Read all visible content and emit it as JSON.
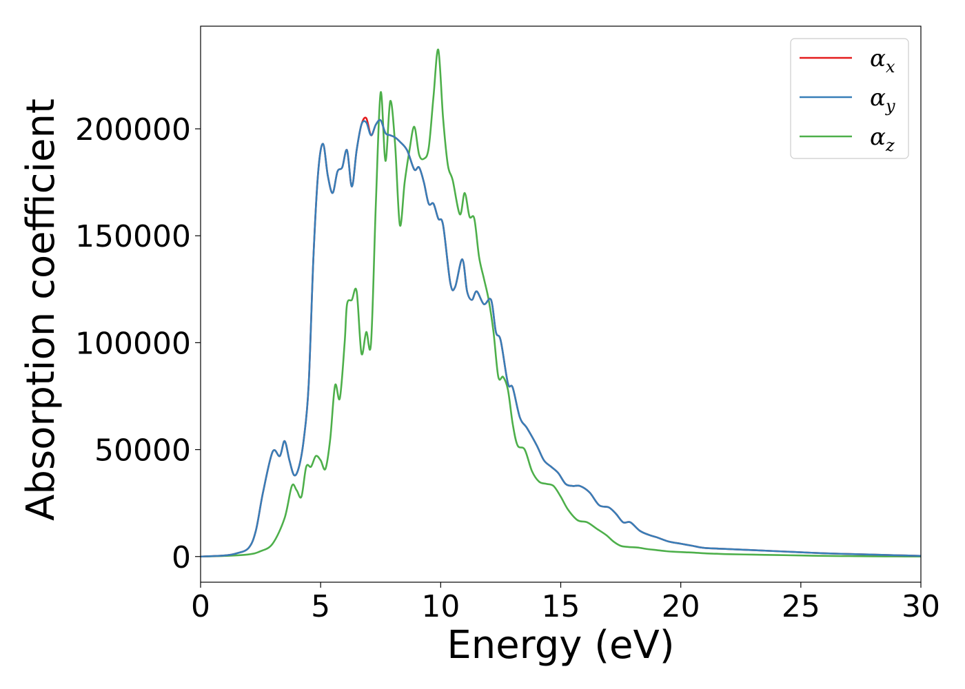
{
  "chart_data": {
    "type": "line",
    "xlabel": "Energy (eV)",
    "ylabel": "Absorption coefficient",
    "xlim": [
      0,
      30
    ],
    "ylim": [
      -12000,
      248000
    ],
    "xticks": [
      0,
      5,
      10,
      15,
      20,
      25,
      30
    ],
    "xtick_labels": [
      "0",
      "5",
      "10",
      "15",
      "20",
      "25",
      "30"
    ],
    "yticks": [
      0,
      50000,
      100000,
      150000,
      200000
    ],
    "ytick_labels": [
      "0",
      "50000",
      "100000",
      "150000",
      "200000"
    ],
    "grid": false,
    "legend_position": "top-right",
    "series": [
      {
        "name": "αx",
        "base": "α",
        "sub": "x",
        "color": "#e41a1c",
        "x": [
          0,
          1,
          1.5,
          2,
          2.3,
          2.6,
          3.0,
          3.3,
          3.5,
          3.7,
          3.9,
          4.1,
          4.3,
          4.5,
          4.7,
          4.9,
          5.1,
          5.3,
          5.5,
          5.7,
          5.9,
          6.1,
          6.3,
          6.5,
          6.7,
          6.9,
          7.1,
          7.3,
          7.5,
          7.7,
          7.9,
          8.1,
          8.3,
          8.6,
          8.9,
          9.1,
          9.3,
          9.5,
          9.7,
          9.9,
          10.1,
          10.4,
          10.6,
          10.9,
          11.1,
          11.3,
          11.5,
          11.8,
          12.1,
          12.3,
          12.5,
          12.8,
          13.0,
          13.3,
          13.6,
          14.0,
          14.3,
          14.6,
          14.9,
          15.2,
          15.5,
          15.8,
          16.2,
          16.6,
          17.0,
          17.3,
          17.6,
          17.9,
          18.3,
          18.7,
          19.0,
          19.5,
          20.0,
          20.5,
          21.0,
          22.0,
          23.0,
          24.0,
          25.0,
          26.0,
          27.0,
          28.0,
          29.0,
          30.0
        ],
        "values": [
          0,
          500,
          1500,
          4000,
          12000,
          30000,
          49000,
          47000,
          54000,
          45000,
          38000,
          42000,
          55000,
          80000,
          140000,
          180000,
          193000,
          178000,
          170000,
          180000,
          182000,
          190000,
          173000,
          190000,
          202000,
          205000,
          197000,
          202000,
          204000,
          198000,
          197000,
          196000,
          194000,
          190000,
          181000,
          182000,
          175000,
          165000,
          165000,
          158000,
          155000,
          128000,
          126000,
          139000,
          124000,
          120000,
          124000,
          118000,
          120000,
          105000,
          101000,
          81000,
          79000,
          65000,
          60000,
          52000,
          45000,
          42000,
          39000,
          34000,
          33000,
          33000,
          30000,
          24000,
          23000,
          20000,
          16000,
          16000,
          12000,
          10000,
          9000,
          7000,
          6000,
          5000,
          4000,
          3500,
          3000,
          2500,
          2000,
          1500,
          1200,
          900,
          600,
          300
        ]
      },
      {
        "name": "αy",
        "base": "α",
        "sub": "y",
        "color": "#377eb8",
        "x": [
          0,
          1,
          1.5,
          2,
          2.3,
          2.6,
          3.0,
          3.3,
          3.5,
          3.7,
          3.9,
          4.1,
          4.3,
          4.5,
          4.7,
          4.9,
          5.1,
          5.3,
          5.5,
          5.7,
          5.9,
          6.1,
          6.3,
          6.5,
          6.7,
          6.9,
          7.1,
          7.3,
          7.5,
          7.7,
          7.9,
          8.1,
          8.3,
          8.6,
          8.9,
          9.1,
          9.3,
          9.5,
          9.7,
          9.9,
          10.1,
          10.4,
          10.6,
          10.9,
          11.1,
          11.3,
          11.5,
          11.8,
          12.1,
          12.3,
          12.5,
          12.8,
          13.0,
          13.3,
          13.6,
          14.0,
          14.3,
          14.6,
          14.9,
          15.2,
          15.5,
          15.8,
          16.2,
          16.6,
          17.0,
          17.3,
          17.6,
          17.9,
          18.3,
          18.7,
          19.0,
          19.5,
          20.0,
          20.5,
          21.0,
          22.0,
          23.0,
          24.0,
          25.0,
          26.0,
          27.0,
          28.0,
          29.0,
          30.0
        ],
        "values": [
          0,
          500,
          1500,
          4000,
          12000,
          30000,
          49000,
          47000,
          54000,
          45000,
          38000,
          42000,
          55000,
          80000,
          140000,
          180000,
          193000,
          178000,
          170000,
          180000,
          182000,
          190000,
          173000,
          190000,
          202000,
          203000,
          197000,
          202000,
          204000,
          198000,
          197000,
          196000,
          194000,
          190000,
          181000,
          182000,
          175000,
          165000,
          165000,
          158000,
          155000,
          128000,
          126000,
          139000,
          124000,
          120000,
          124000,
          118000,
          120000,
          105000,
          101000,
          81000,
          79000,
          65000,
          60000,
          52000,
          45000,
          42000,
          39000,
          34000,
          33000,
          33000,
          30000,
          24000,
          23000,
          20000,
          16000,
          16000,
          12000,
          10000,
          9000,
          7000,
          6000,
          5000,
          4000,
          3500,
          3000,
          2500,
          2000,
          1500,
          1200,
          900,
          600,
          300
        ]
      },
      {
        "name": "αz",
        "base": "α",
        "sub": "z",
        "color": "#4daf4a",
        "x": [
          0,
          1,
          2,
          2.5,
          3.0,
          3.5,
          3.8,
          4.0,
          4.2,
          4.4,
          4.6,
          4.8,
          5.0,
          5.2,
          5.4,
          5.6,
          5.8,
          6.0,
          6.1,
          6.3,
          6.5,
          6.7,
          6.9,
          7.1,
          7.3,
          7.5,
          7.7,
          7.9,
          8.1,
          8.3,
          8.5,
          8.7,
          8.9,
          9.1,
          9.3,
          9.5,
          9.7,
          9.9,
          10.1,
          10.3,
          10.5,
          10.8,
          11.0,
          11.2,
          11.4,
          11.6,
          11.8,
          12.0,
          12.2,
          12.4,
          12.6,
          12.8,
          13.0,
          13.2,
          13.5,
          13.8,
          14.1,
          14.4,
          14.7,
          15.0,
          15.3,
          15.7,
          16.1,
          16.5,
          16.9,
          17.2,
          17.5,
          17.8,
          18.2,
          18.6,
          19.0,
          19.4,
          19.8,
          20.2,
          20.6,
          21.0,
          21.5,
          22.0,
          23.0,
          24.0,
          25.0,
          26.0,
          27.0,
          28.0,
          29.0,
          30.0
        ],
        "values": [
          0,
          300,
          1000,
          2500,
          6000,
          18000,
          33000,
          31000,
          28000,
          42000,
          42000,
          47000,
          45000,
          41000,
          55000,
          80000,
          74000,
          100000,
          118000,
          120000,
          124000,
          95000,
          105000,
          100000,
          165000,
          217000,
          185000,
          213000,
          193000,
          155000,
          175000,
          190000,
          201000,
          188000,
          186000,
          191000,
          215000,
          237000,
          205000,
          183000,
          176000,
          160000,
          170000,
          159000,
          158000,
          140000,
          130000,
          120000,
          105000,
          84000,
          84000,
          78000,
          62000,
          52000,
          50000,
          40000,
          35000,
          34000,
          33000,
          28000,
          22000,
          17000,
          16000,
          13000,
          10000,
          7000,
          5000,
          4500,
          4200,
          3500,
          3000,
          2500,
          2200,
          2000,
          1800,
          1500,
          1300,
          1100,
          900,
          700,
          500,
          300,
          200,
          100,
          50,
          0
        ]
      }
    ]
  }
}
